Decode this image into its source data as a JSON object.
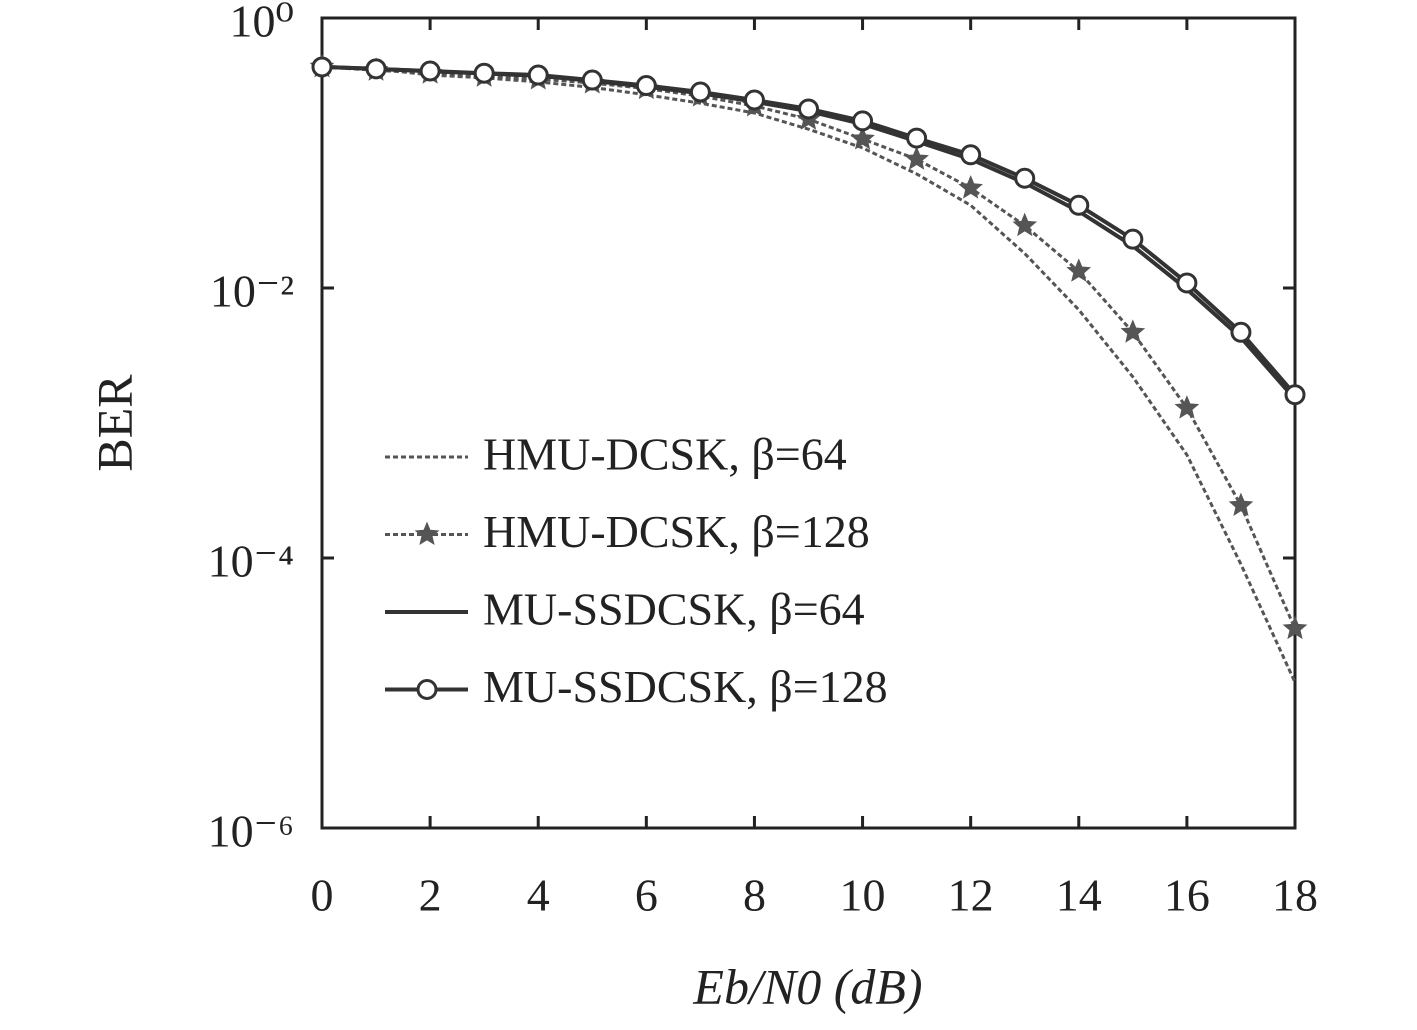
{
  "chart_data": {
    "type": "line",
    "x_label": "Eb/N0 (dB)",
    "y_label": "BER",
    "x": [
      0,
      1,
      2,
      3,
      4,
      5,
      6,
      7,
      8,
      9,
      10,
      11,
      12,
      13,
      14,
      15,
      16,
      17,
      18
    ],
    "xlim": [
      0,
      18
    ],
    "xticks": [
      0,
      2,
      4,
      6,
      8,
      10,
      12,
      14,
      16,
      18
    ],
    "ylim": [
      1e-06,
      1
    ],
    "yscale": "log",
    "yticks": [
      {
        "value": 1,
        "label": "10⁰"
      },
      {
        "value": 0.01,
        "label": "10⁻²"
      },
      {
        "value": 0.0001,
        "label": "10⁻⁴"
      },
      {
        "value": 1e-06,
        "label": "10⁻⁶"
      }
    ],
    "legend": "left",
    "series": [
      {
        "name": "HMU-DCSK, β=64",
        "color": "#555555",
        "dash": "dotted",
        "marker": "none",
        "values": [
          0.434,
          0.42,
          0.378,
          0.36,
          0.336,
          0.306,
          0.27,
          0.234,
          0.198,
          0.15,
          0.109,
          0.07,
          0.041,
          0.018,
          0.0069,
          0.0022,
          0.00058,
          9e-05,
          1.2e-05
        ]
      },
      {
        "name": "HMU-DCSK, β=128",
        "color": "#555555",
        "dash": "dotted",
        "marker": "star",
        "values": [
          0.434,
          0.41,
          0.39,
          0.37,
          0.353,
          0.33,
          0.3,
          0.264,
          0.223,
          0.178,
          0.127,
          0.09,
          0.055,
          0.029,
          0.0133,
          0.0047,
          0.00129,
          0.000245,
          3e-05
        ]
      },
      {
        "name": "MU-SSDCSK, β=64",
        "color": "#333333",
        "dash": "solid",
        "marker": "none",
        "values": [
          0.434,
          0.42,
          0.403,
          0.388,
          0.373,
          0.342,
          0.31,
          0.277,
          0.24,
          0.204,
          0.164,
          0.122,
          0.09,
          0.06,
          0.037,
          0.0205,
          0.0098,
          0.0043,
          0.0015
        ]
      },
      {
        "name": "MU-SSDCSK, β=128",
        "color": "#333333",
        "dash": "solid",
        "marker": "circle",
        "values": [
          0.434,
          0.42,
          0.405,
          0.39,
          0.378,
          0.347,
          0.316,
          0.283,
          0.247,
          0.212,
          0.173,
          0.129,
          0.097,
          0.065,
          0.041,
          0.023,
          0.0109,
          0.0047,
          0.00162
        ]
      }
    ]
  }
}
